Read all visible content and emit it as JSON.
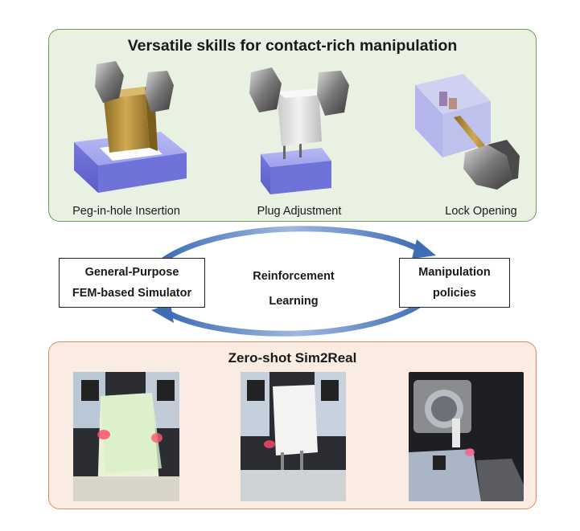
{
  "top_panel": {
    "title": "Versatile skills for contact-rich manipulation",
    "tasks": [
      {
        "caption": "Peg-in-hole Insertion",
        "icon": "peg-in-hole-illustration"
      },
      {
        "caption": "Plug Adjustment",
        "icon": "plug-adjustment-illustration"
      },
      {
        "caption": "Lock Opening",
        "icon": "lock-opening-illustration"
      }
    ]
  },
  "cycle": {
    "left_box": {
      "line1": "General-Purpose",
      "line2": "FEM-based Simulator"
    },
    "center": {
      "line1": "Reinforcement",
      "line2": "Learning"
    },
    "right_box": {
      "line1": "Manipulation",
      "line2": "policies"
    },
    "arrow_color": "#5b84c4"
  },
  "bottom_panel": {
    "title": "Zero-shot Sim2Real",
    "photos": [
      "peg-insertion-photo",
      "plug-adjustment-photo",
      "lock-opening-photo"
    ]
  },
  "colors": {
    "top_panel_bg": "#e9f1e3",
    "top_panel_border": "#6f9a56",
    "bottom_panel_bg": "#fbece3",
    "bottom_panel_border": "#d88e5c",
    "base_purple": "#7b7ee0",
    "peg_gold": "#b8923a"
  }
}
